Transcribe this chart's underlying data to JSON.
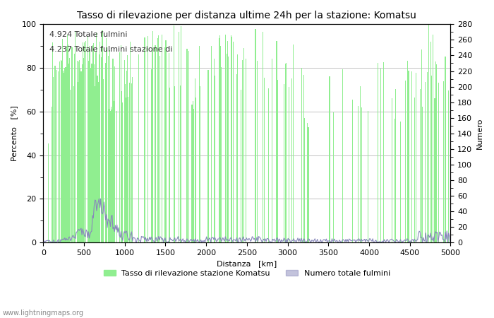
{
  "title": "Tasso di rilevazione per distanza ultime 24h per la stazione: Komatsu",
  "xlabel": "Distanza   [km]",
  "ylabel_left": "Percento   [%]",
  "ylabel_right": "Numero",
  "annotation1": "4.924 Totale fulmini",
  "annotation2": "4.237 Totale fulmini stazione di",
  "legend_green": "Tasso di rilevazione stazione Komatsu",
  "legend_blue": "Numero totale fulmini",
  "watermark": "www.lightningmaps.org",
  "xlim": [
    0,
    5000
  ],
  "ylim_left": [
    0,
    100
  ],
  "ylim_right": [
    0,
    280
  ],
  "xticks": [
    0,
    500,
    1000,
    1500,
    2000,
    2500,
    3000,
    3500,
    4000,
    4500,
    5000
  ],
  "yticks_left": [
    0,
    20,
    40,
    60,
    80,
    100
  ],
  "yticks_right": [
    0,
    20,
    40,
    60,
    80,
    100,
    120,
    140,
    160,
    180,
    200,
    220,
    240,
    260,
    280
  ],
  "bar_color": "#90EE90",
  "line_color": "#8888BB",
  "bg_color": "#FFFFFF",
  "grid_color": "#AAAAAA",
  "title_fontsize": 10,
  "label_fontsize": 8,
  "tick_fontsize": 8,
  "annotation_fontsize": 8
}
